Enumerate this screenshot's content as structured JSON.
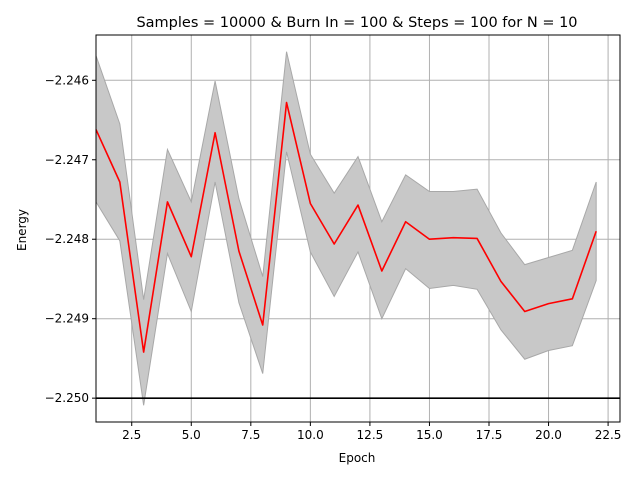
{
  "chart_data": {
    "type": "line",
    "title": "Samples = 10000 & Burn In = 100 & Steps = 100 for N = 10",
    "xlabel": "Epoch",
    "ylabel": "Energy",
    "xlim": [
      1,
      23
    ],
    "ylim": [
      -2.2503,
      -2.24543
    ],
    "grid": true,
    "x_ticks": [
      2.5,
      5.0,
      7.5,
      10.0,
      12.5,
      15.0,
      17.5,
      20.0,
      22.5
    ],
    "x_tick_labels": [
      "2.5",
      "5.0",
      "7.5",
      "10.0",
      "12.5",
      "15.0",
      "17.5",
      "20.0",
      "22.5"
    ],
    "y_ticks": [
      -2.25,
      -2.249,
      -2.248,
      -2.247,
      -2.246
    ],
    "y_tick_labels": [
      "−2.250",
      "−2.249",
      "−2.248",
      "−2.247",
      "−2.246"
    ],
    "colors": {
      "line": "#ff0000",
      "band": "#c8c8c8",
      "band_edge": "#a8a8a8",
      "reference": "#000000",
      "grid": "#b0b0b0"
    },
    "reference_line": {
      "y": -2.25
    },
    "series": [
      {
        "x": [
          1,
          2,
          3,
          4,
          5,
          6,
          7,
          8,
          9,
          10,
          11,
          12,
          13,
          14,
          15,
          16,
          17,
          18,
          19,
          20,
          21,
          22
        ],
        "mean": [
          -2.24662,
          -2.24728,
          -2.24942,
          -2.24753,
          -2.24822,
          -2.24666,
          -2.24815,
          -2.24908,
          -2.24628,
          -2.24755,
          -2.24806,
          -2.24757,
          -2.2484,
          -2.24778,
          -2.248,
          -2.24798,
          -2.24799,
          -2.24853,
          -2.24891,
          -2.24881,
          -2.24875,
          -2.2479
        ],
        "upper": [
          -2.24569,
          -2.24655,
          -2.24876,
          -2.24687,
          -2.24753,
          -2.24601,
          -2.24749,
          -2.24847,
          -2.24564,
          -2.24693,
          -2.24742,
          -2.24696,
          -2.24778,
          -2.24719,
          -2.2474,
          -2.2474,
          -2.24737,
          -2.24792,
          -2.24832,
          -2.24823,
          -2.24814,
          -2.24728
        ],
        "lower": [
          -2.24753,
          -2.24802,
          -2.25009,
          -2.24818,
          -2.24891,
          -2.24728,
          -2.2488,
          -2.24969,
          -2.2469,
          -2.24816,
          -2.24872,
          -2.24816,
          -2.249,
          -2.24837,
          -2.24862,
          -2.24858,
          -2.24863,
          -2.24914,
          -2.24951,
          -2.2494,
          -2.24934,
          -2.24852
        ]
      }
    ]
  }
}
